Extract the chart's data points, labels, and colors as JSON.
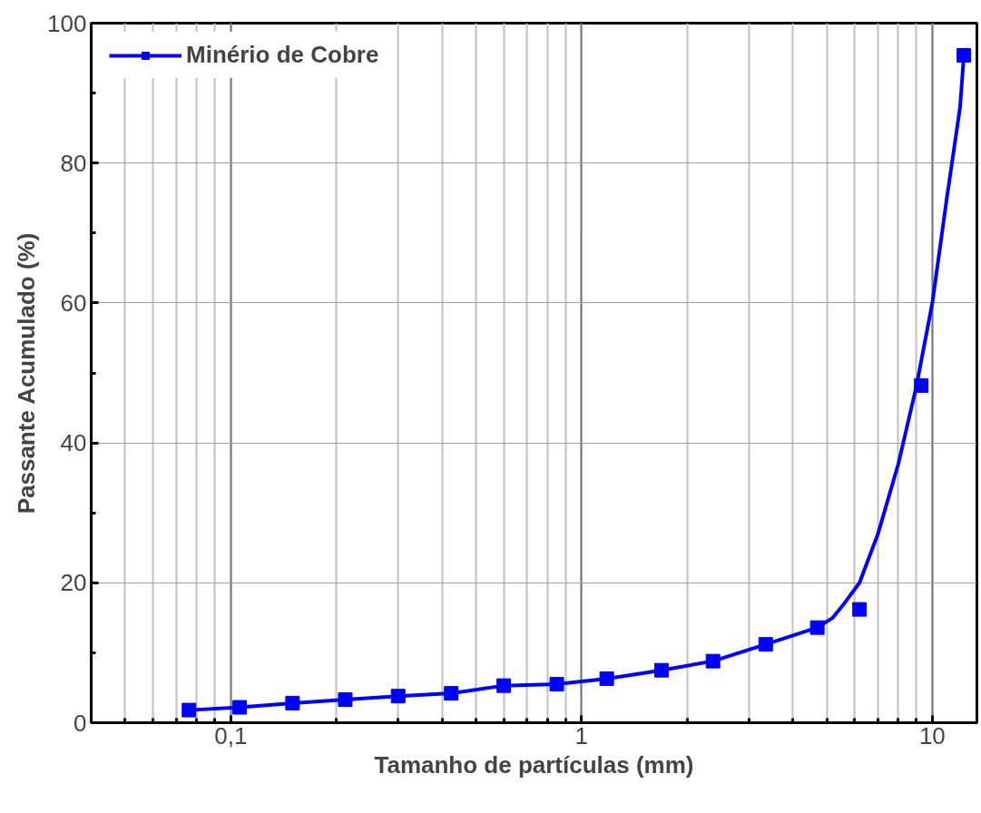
{
  "chart_data": {
    "type": "scatter",
    "xlabel": "Tamanho de partículas (mm)",
    "ylabel": "Passante Acumulado (%)",
    "log": "x",
    "xlim": [
      0.04,
      13.4
    ],
    "ylim": [
      0,
      100
    ],
    "xticks": [
      {
        "value": 0.1,
        "label": "0,1"
      },
      1,
      10
    ],
    "yticks": [
      0,
      20,
      40,
      60,
      80,
      100
    ],
    "grid": true,
    "legend": "top left",
    "marker": "square",
    "series": [
      {
        "name": "Minério de Cobre",
        "color": "#0000ff",
        "x": [
          0.076,
          0.106,
          0.15,
          0.212,
          0.3,
          0.425,
          0.6,
          0.85,
          1.18,
          1.69,
          2.37,
          3.35,
          4.7,
          6.2,
          9.3,
          12.3
        ],
        "values": [
          1.8,
          2.2,
          2.8,
          3.3,
          3.8,
          4.2,
          5.3,
          5.5,
          6.3,
          7.5,
          8.8,
          11.2,
          13.6,
          16.2,
          48.2,
          95.4
        ]
      },
      {
        "type": "line",
        "marker": "none",
        "color": "#0000ff",
        "x": [
          0.076,
          0.106,
          0.15,
          0.212,
          0.3,
          0.425,
          0.6,
          0.85,
          1.18,
          1.69,
          2.37,
          3.35,
          4.7,
          5.2,
          5.6,
          6.2,
          7,
          8,
          9,
          10,
          11,
          12,
          12.3
        ],
        "values": [
          1.8,
          2.2,
          2.8,
          3.3,
          3.8,
          4.2,
          5.3,
          5.5,
          6.3,
          7.5,
          8.8,
          11.2,
          13.6,
          15,
          17,
          20,
          27,
          37,
          48,
          60,
          75,
          88,
          95.4
        ]
      }
    ]
  }
}
